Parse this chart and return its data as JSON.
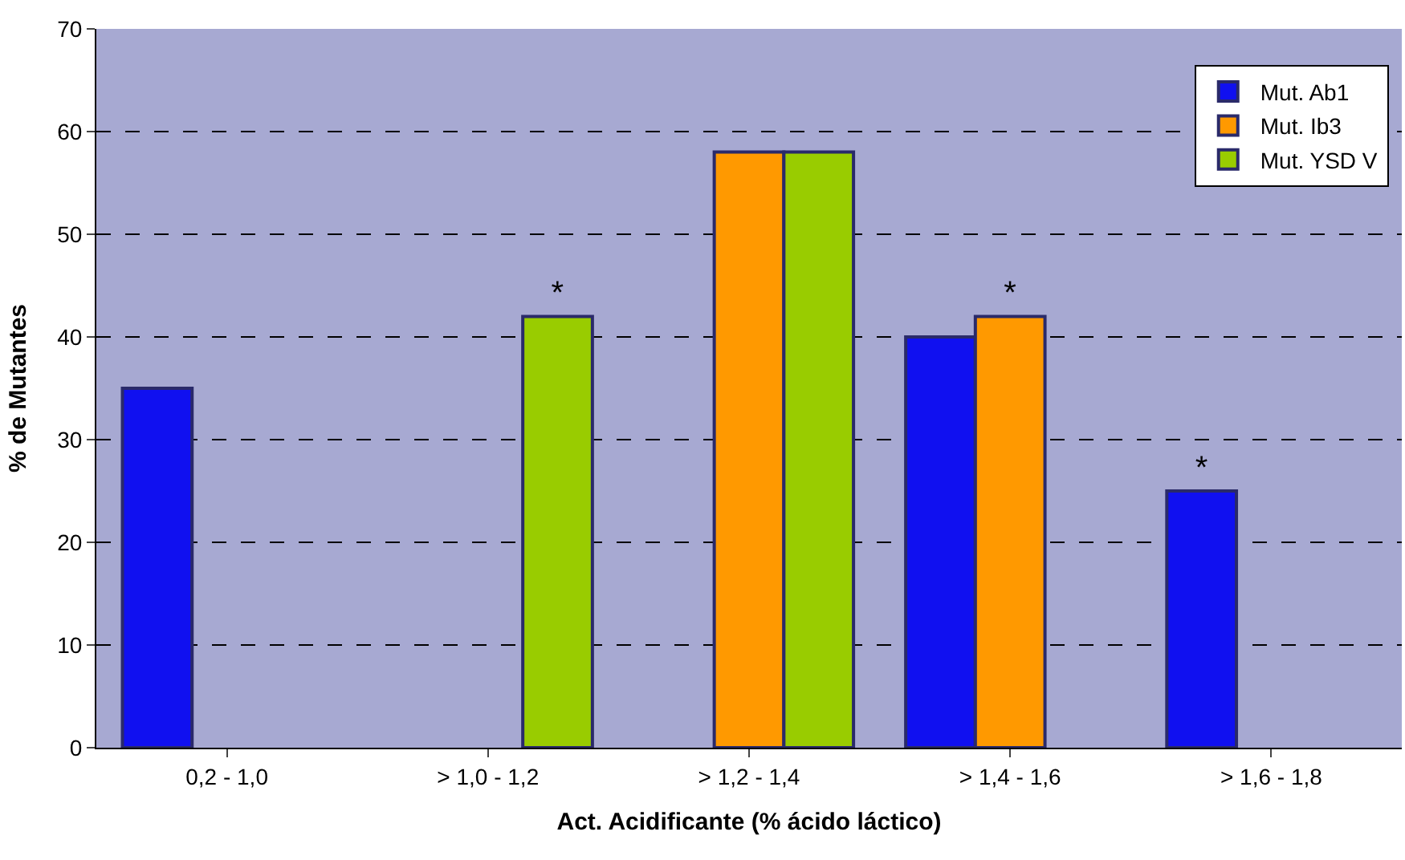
{
  "chart_data": {
    "type": "bar",
    "xlabel": "Act. Acidificante (% ácido láctico)",
    "ylabel": "% de Mutantes",
    "categories": [
      "0,2 - 1,0",
      "> 1,0 - 1,2",
      "> 1,2 - 1,4",
      "> 1,4 - 1,6",
      "> 1,6 - 1,8"
    ],
    "series": [
      {
        "name": "Mut. Ab1",
        "color": "#1010f0",
        "values": [
          35,
          null,
          null,
          40,
          25
        ],
        "value_labels": [
          null,
          null,
          null,
          null,
          "*"
        ]
      },
      {
        "name": "Mut. Ib3",
        "color": "#ff9900",
        "values": [
          null,
          null,
          58,
          42,
          null
        ],
        "value_labels": [
          null,
          null,
          null,
          "*",
          null
        ]
      },
      {
        "name": "Mut. YSD V",
        "color": "#99cc00",
        "values": [
          null,
          42,
          58,
          null,
          null
        ],
        "value_labels": [
          null,
          "*",
          null,
          null,
          null
        ]
      }
    ],
    "ylim": [
      0,
      70
    ],
    "yticks": [
      0,
      10,
      20,
      30,
      40,
      50,
      60,
      70
    ],
    "grid": "y",
    "legend": "top right"
  }
}
